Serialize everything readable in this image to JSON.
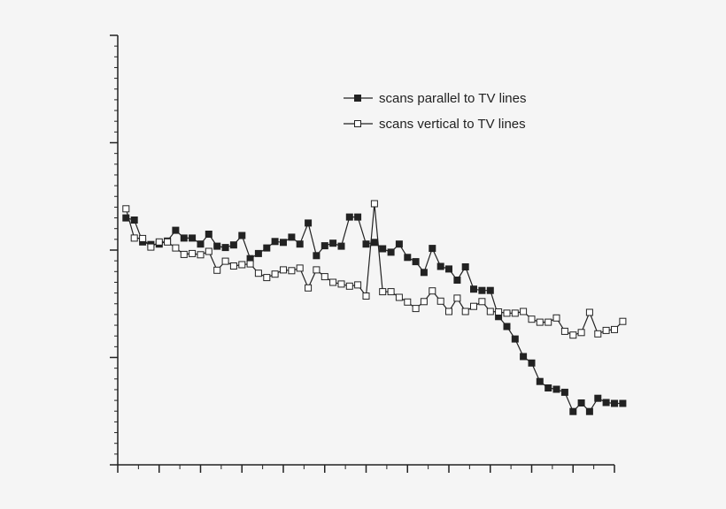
{
  "chart_data": {
    "type": "line",
    "title": "",
    "xlabel": "",
    "ylabel": "",
    "xlim": [
      0,
      60
    ],
    "ylim": [
      0,
      1
    ],
    "grid": false,
    "legend_position": "top-right",
    "x_major_ticks": [
      0,
      5,
      10,
      15,
      20,
      25,
      30,
      35,
      40,
      45,
      50,
      55,
      60
    ],
    "y_major_ticks": [
      0,
      0.25,
      0.5,
      0.75,
      1
    ],
    "series": [
      {
        "name": "scans parallel to TV lines",
        "marker": "filled-square",
        "color": "#222222",
        "values": [
          [
            1.0,
            0.575
          ],
          [
            2.0,
            0.57
          ],
          [
            3.0,
            0.519
          ],
          [
            4.0,
            0.513
          ],
          [
            5.0,
            0.514
          ],
          [
            6.0,
            0.521
          ],
          [
            7.0,
            0.546
          ],
          [
            8.0,
            0.528
          ],
          [
            9.0,
            0.528
          ],
          [
            10.0,
            0.514
          ],
          [
            11.0,
            0.537
          ],
          [
            12.0,
            0.509
          ],
          [
            13.0,
            0.506
          ],
          [
            14.0,
            0.512
          ],
          [
            15.0,
            0.534
          ],
          [
            16.0,
            0.48
          ],
          [
            17.0,
            0.492
          ],
          [
            18.0,
            0.505
          ],
          [
            19.0,
            0.52
          ],
          [
            20.0,
            0.518
          ],
          [
            21.0,
            0.53
          ],
          [
            22.0,
            0.514
          ],
          [
            23.0,
            0.563
          ],
          [
            24.0,
            0.487
          ],
          [
            25.0,
            0.51
          ],
          [
            26.0,
            0.516
          ],
          [
            27.0,
            0.509
          ],
          [
            28.0,
            0.577
          ],
          [
            29.0,
            0.577
          ],
          [
            30.0,
            0.514
          ],
          [
            31.0,
            0.518
          ],
          [
            32.0,
            0.503
          ],
          [
            33.0,
            0.495
          ],
          [
            34.0,
            0.514
          ],
          [
            35.0,
            0.483
          ],
          [
            36.0,
            0.473
          ],
          [
            37.0,
            0.448
          ],
          [
            38.0,
            0.504
          ],
          [
            39.0,
            0.462
          ],
          [
            40.0,
            0.456
          ],
          [
            41.0,
            0.43
          ],
          [
            42.0,
            0.461
          ],
          [
            43.0,
            0.409
          ],
          [
            44.0,
            0.406
          ],
          [
            45.0,
            0.406
          ],
          [
            46.0,
            0.345
          ],
          [
            47.0,
            0.322
          ],
          [
            48.0,
            0.293
          ],
          [
            49.0,
            0.252
          ],
          [
            50.0,
            0.237
          ],
          [
            51.0,
            0.194
          ],
          [
            52.0,
            0.179
          ],
          [
            53.0,
            0.176
          ],
          [
            54.0,
            0.169
          ],
          [
            55.0,
            0.124
          ],
          [
            56.0,
            0.144
          ],
          [
            57.0,
            0.124
          ],
          [
            58.0,
            0.155
          ],
          [
            59.0,
            0.145
          ],
          [
            60.0,
            0.143
          ],
          [
            61.0,
            0.143
          ]
        ]
      },
      {
        "name": "scans vertical to TV lines",
        "marker": "open-square",
        "color": "#222222",
        "values": [
          [
            1.0,
            0.596
          ],
          [
            2.0,
            0.528
          ],
          [
            3.0,
            0.527
          ],
          [
            4.0,
            0.507
          ],
          [
            5.0,
            0.519
          ],
          [
            6.0,
            0.519
          ],
          [
            7.0,
            0.505
          ],
          [
            8.0,
            0.49
          ],
          [
            9.0,
            0.492
          ],
          [
            10.0,
            0.489
          ],
          [
            11.0,
            0.497
          ],
          [
            12.0,
            0.453
          ],
          [
            13.0,
            0.474
          ],
          [
            14.0,
            0.463
          ],
          [
            15.0,
            0.466
          ],
          [
            16.0,
            0.468
          ],
          [
            17.0,
            0.446
          ],
          [
            18.0,
            0.436
          ],
          [
            19.0,
            0.444
          ],
          [
            20.0,
            0.454
          ],
          [
            21.0,
            0.452
          ],
          [
            22.0,
            0.458
          ],
          [
            23.0,
            0.412
          ],
          [
            24.0,
            0.454
          ],
          [
            25.0,
            0.438
          ],
          [
            26.0,
            0.425
          ],
          [
            27.0,
            0.421
          ],
          [
            28.0,
            0.416
          ],
          [
            29.0,
            0.419
          ],
          [
            30.0,
            0.393
          ],
          [
            31.0,
            0.608
          ],
          [
            32.0,
            0.403
          ],
          [
            33.0,
            0.403
          ],
          [
            34.0,
            0.39
          ],
          [
            35.0,
            0.379
          ],
          [
            36.0,
            0.364
          ],
          [
            37.0,
            0.38
          ],
          [
            38.0,
            0.405
          ],
          [
            39.0,
            0.381
          ],
          [
            40.0,
            0.357
          ],
          [
            41.0,
            0.388
          ],
          [
            42.0,
            0.357
          ],
          [
            43.0,
            0.369
          ],
          [
            44.0,
            0.38
          ],
          [
            45.0,
            0.357
          ],
          [
            46.0,
            0.356
          ],
          [
            47.0,
            0.353
          ],
          [
            48.0,
            0.353
          ],
          [
            49.0,
            0.357
          ],
          [
            50.0,
            0.339
          ],
          [
            51.0,
            0.332
          ],
          [
            52.0,
            0.332
          ],
          [
            53.0,
            0.342
          ],
          [
            54.0,
            0.311
          ],
          [
            55.0,
            0.302
          ],
          [
            56.0,
            0.308
          ],
          [
            57.0,
            0.355
          ],
          [
            58.0,
            0.305
          ],
          [
            59.0,
            0.313
          ],
          [
            60.0,
            0.315
          ],
          [
            61.0,
            0.334
          ]
        ]
      }
    ]
  }
}
